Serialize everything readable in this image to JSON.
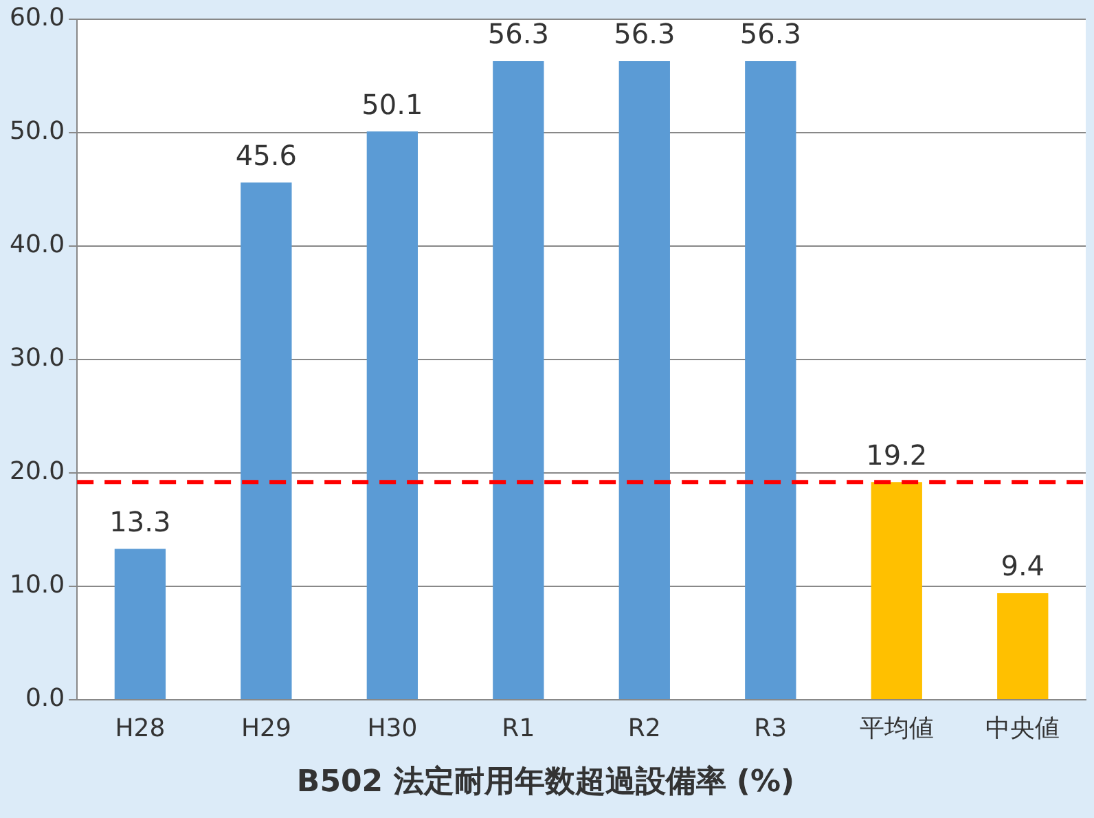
{
  "chart_data": {
    "type": "bar",
    "title": "B502 法定耐用年数超過設備率 (%)",
    "categories": [
      "H28",
      "H29",
      "H30",
      "R1",
      "R2",
      "R3",
      "平均値",
      "中央値"
    ],
    "values": [
      13.3,
      45.6,
      50.1,
      56.3,
      56.3,
      56.3,
      19.2,
      9.4
    ],
    "colors": [
      "#5b9bd5",
      "#5b9bd5",
      "#5b9bd5",
      "#5b9bd5",
      "#5b9bd5",
      "#5b9bd5",
      "#ffc000",
      "#ffc000"
    ],
    "ylim": [
      0,
      60
    ],
    "yticks": [
      {
        "value": 0,
        "label": "0.0"
      },
      {
        "value": 10,
        "label": "10.0"
      },
      {
        "value": 20,
        "label": "20.0"
      },
      {
        "value": 30,
        "label": "30.0"
      },
      {
        "value": 40,
        "label": "40.0"
      },
      {
        "value": 50,
        "label": "50.0"
      },
      {
        "value": 60,
        "label": "60.0"
      }
    ],
    "grid": "y",
    "legend": false,
    "data_labels": true,
    "ref_lines": [
      {
        "axis": "y",
        "value": 19.2,
        "color": "#ff0000",
        "line_style": "dashed"
      }
    ]
  }
}
